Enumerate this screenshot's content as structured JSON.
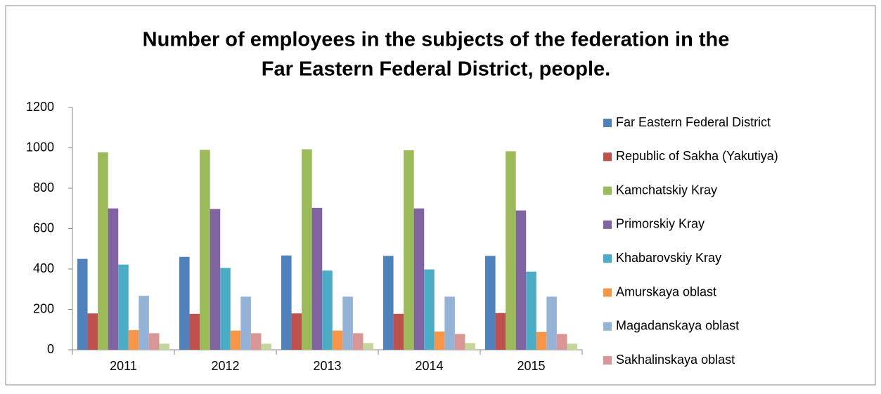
{
  "chart_data": {
    "type": "bar",
    "title": [
      "Number of employees in the subjects of the federation in the",
      "Far Eastern Federal District, people."
    ],
    "categories": [
      "2011",
      "2012",
      "2013",
      "2014",
      "2015"
    ],
    "series": [
      {
        "name": "Far Eastern Federal District",
        "color": "#4f81bd",
        "values": [
          450,
          460,
          467,
          465,
          465
        ]
      },
      {
        "name": "Republic of Sakha (Yakutiya)",
        "color": "#c0504d",
        "values": [
          180,
          178,
          180,
          178,
          182
        ]
      },
      {
        "name": "Kamchatskiy Kray",
        "color": "#9bbb59",
        "values": [
          978,
          990,
          993,
          988,
          983
        ]
      },
      {
        "name": "Primorskiy Kray",
        "color": "#8064a2",
        "values": [
          700,
          697,
          703,
          700,
          690
        ]
      },
      {
        "name": "Khabarovskiy Kray",
        "color": "#4bacc6",
        "values": [
          422,
          405,
          392,
          398,
          387
        ]
      },
      {
        "name": "Amurskaya oblast",
        "color": "#f79646",
        "values": [
          97,
          95,
          95,
          90,
          88
        ]
      },
      {
        "name": "Magadanskaya oblast",
        "color": "#95b3d7",
        "values": [
          267,
          263,
          263,
          263,
          263
        ]
      },
      {
        "name": "Sakhalinskaya oblast",
        "color": "#d99694",
        "values": [
          82,
          82,
          82,
          78,
          78
        ]
      },
      {
        "name": null,
        "color": "#c3d69b",
        "values": [
          30,
          30,
          33,
          33,
          30
        ]
      }
    ],
    "ylim": [
      0,
      1200
    ],
    "yticks": [
      0,
      200,
      400,
      600,
      800,
      1000,
      1200
    ],
    "grid": false,
    "legend": "right"
  }
}
